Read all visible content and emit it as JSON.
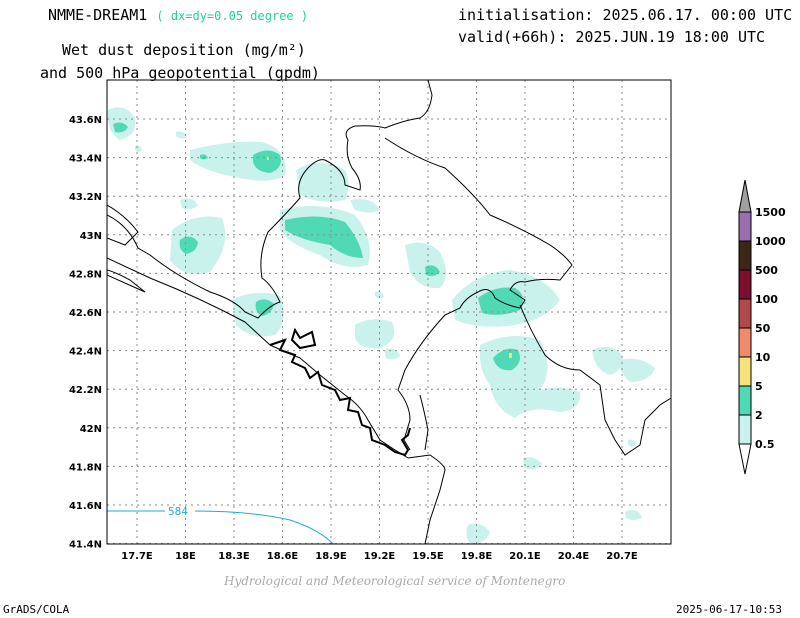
{
  "header": {
    "model": "NMME-DREAM1",
    "resolution": "( dx=dy=0.05 degree )",
    "variable_line1": "Wet dust deposition (mg/m²)",
    "variable_line2": "and 500 hPa geopotential (gpdm)",
    "initialisation": "initialisation: 2025.06.17. 00:00 UTC",
    "valid": "valid(+66h): 2025.JUN.19 18:00 UTC"
  },
  "map": {
    "lon_ticks": [
      "17.7E",
      "18E",
      "18.3E",
      "18.6E",
      "18.9E",
      "19.2E",
      "19.5E",
      "19.8E",
      "20.1E",
      "20.4E",
      "20.7E"
    ],
    "lat_ticks": [
      "43.6N",
      "43.4N",
      "43.2N",
      "43N",
      "42.8N",
      "42.6N",
      "42.4N",
      "42.2N",
      "42N",
      "41.8N",
      "41.6N",
      "41.4N"
    ],
    "contour_label": "584",
    "colors": {
      "contour": "#22a8e0",
      "border": "#000000",
      "grid": "#8a8a8a"
    }
  },
  "legend": {
    "levels": [
      "1500",
      "1000",
      "500",
      "100",
      "50",
      "10",
      "5",
      "2",
      "0.5"
    ],
    "colors": [
      "#9a6fb0",
      "#3b2716",
      "#7a0f2e",
      "#b04a48",
      "#ef8a6a",
      "#f6e27a",
      "#4fd9b4",
      "#c9f2ec"
    ],
    "top_arrow_color": "#a0a0a0",
    "bottom_arrow_color": "#ffffff"
  },
  "credit": "Hydrological and Meteorological service of Montenegro",
  "footer": {
    "left": "GrADS/COLA",
    "right": "2025-06-17-10:53"
  }
}
